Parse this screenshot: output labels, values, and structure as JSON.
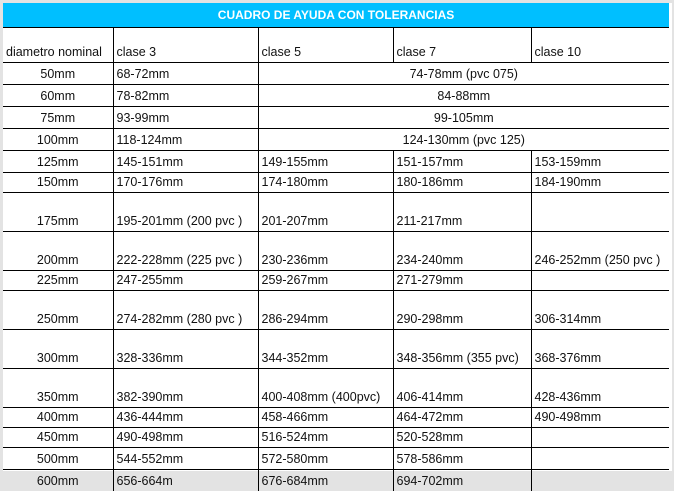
{
  "title": "CUADRO DE AYUDA CON TOLERANCIAS",
  "colors": {
    "header_bg": "#00bfff",
    "header_text": "#ffffff"
  },
  "headers": [
    "diametro nominal",
    "clase 3",
    "clase 5",
    "clase 7",
    "clase 10"
  ],
  "merged_rows": [
    {
      "nominal": "50mm",
      "clase3": "68-72mm",
      "merged": "74-78mm (pvc 075)"
    },
    {
      "nominal": "60mm",
      "clase3": "78-82mm",
      "merged": "84-88mm"
    },
    {
      "nominal": "75mm",
      "clase3": "93-99mm",
      "merged": "99-105mm"
    },
    {
      "nominal": "100mm",
      "clase3": "118-124mm",
      "merged": "124-130mm (pvc 125)"
    }
  ],
  "rows": [
    {
      "nominal": "125mm",
      "c3": "145-151mm",
      "c5": "149-155mm",
      "c7": "151-157mm",
      "c10": "153-159mm"
    },
    {
      "nominal": "150mm",
      "c3": "170-176mm",
      "c5": "174-180mm",
      "c7": "180-186mm",
      "c10": "184-190mm"
    },
    {
      "nominal": "175mm",
      "c3": "195-201mm (200 pvc )",
      "c5": "201-207mm",
      "c7": "211-217mm",
      "c10": ""
    },
    {
      "nominal": "200mm",
      "c3": "222-228mm (225 pvc )",
      "c5": "230-236mm",
      "c7": "234-240mm",
      "c10": "246-252mm (250 pvc )"
    },
    {
      "nominal": "225mm",
      "c3": "247-255mm",
      "c5": "259-267mm",
      "c7": "271-279mm",
      "c10": ""
    },
    {
      "nominal": "250mm",
      "c3": "274-282mm (280 pvc )",
      "c5": "286-294mm",
      "c7": "290-298mm",
      "c10": "306-314mm"
    },
    {
      "nominal": "300mm",
      "c3": "328-336mm",
      "c5": "344-352mm",
      "c7": "348-356mm (355 pvc)",
      "c10": "368-376mm"
    },
    {
      "nominal": "350mm",
      "c3": "382-390mm",
      "c5": "400-408mm (400pvc)",
      "c7": "406-414mm",
      "c10": "428-436mm"
    },
    {
      "nominal": "400mm",
      "c3": "436-444mm",
      "c5": "458-466mm",
      "c7": "464-472mm",
      "c10": "490-498mm"
    },
    {
      "nominal": "450mm",
      "c3": "490-498mm",
      "c5": "516-524mm",
      "c7": "520-528mm",
      "c10": ""
    },
    {
      "nominal": "500mm",
      "c3": "544-552mm",
      "c5": "572-580mm",
      "c7": "578-586mm",
      "c10": ""
    },
    {
      "nominal": "600mm",
      "c3": "656-664m",
      "c5": "676-684mm",
      "c7": "694-702mm",
      "c10": ""
    }
  ]
}
